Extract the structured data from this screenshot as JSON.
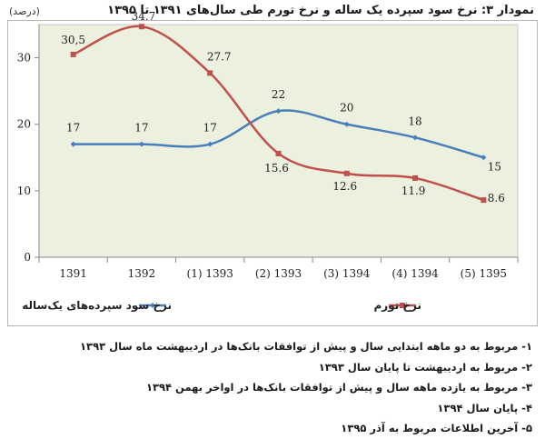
{
  "title": "نمودار ۳: نرخ سود سپرده یک ساله و نرخ تورم طی سال‌های ۱۳۹۱ تا ۱۳۹۵",
  "unit_label": "(درصد)",
  "chart_data": {
    "type": "line",
    "categories": [
      "1391",
      "1392",
      "1393 (1)",
      "1393 (2)",
      "1394 (3)",
      "1394 (4)",
      "1395 (5)"
    ],
    "ylim": [
      0,
      35
    ],
    "yticks": [
      0,
      10,
      20,
      30
    ],
    "grid": false,
    "legend_position": "bottom",
    "series": [
      {
        "name": "نرخ سود سپرده‌های یک‌ساله",
        "color": "#4a7ebb",
        "values": [
          17,
          17,
          17,
          22,
          20,
          18,
          15
        ],
        "labels": [
          "17",
          "17",
          "17",
          "22",
          "20",
          "18",
          "15"
        ]
      },
      {
        "name": "نرخ تورم",
        "color": "#c0504d",
        "values": [
          30.5,
          34.7,
          27.7,
          15.6,
          12.6,
          11.9,
          8.6
        ],
        "labels": [
          "30,5",
          "34.7",
          "27.7",
          "15.6",
          "12.6",
          "11.9",
          "8.6"
        ]
      }
    ],
    "plot_background": "#ebf1de"
  },
  "notes": [
    "۱- مربوط به دو ماهه ابتدایی سال و پیش از توافقات بانک‌ها در اردیبهشت ماه سال ۱۳۹۳",
    "۲- مربوط به اردیبهشت تا پایان سال ۱۳۹۳",
    "۳- مربوط به یازده ماهه سال و پیش از توافقات بانک‌ها در اواخر بهمن ۱۳۹۴",
    "۴- پایان سال ۱۳۹۴",
    "۵- آخرین اطلاعات مربوط به آذر ۱۳۹۵"
  ]
}
